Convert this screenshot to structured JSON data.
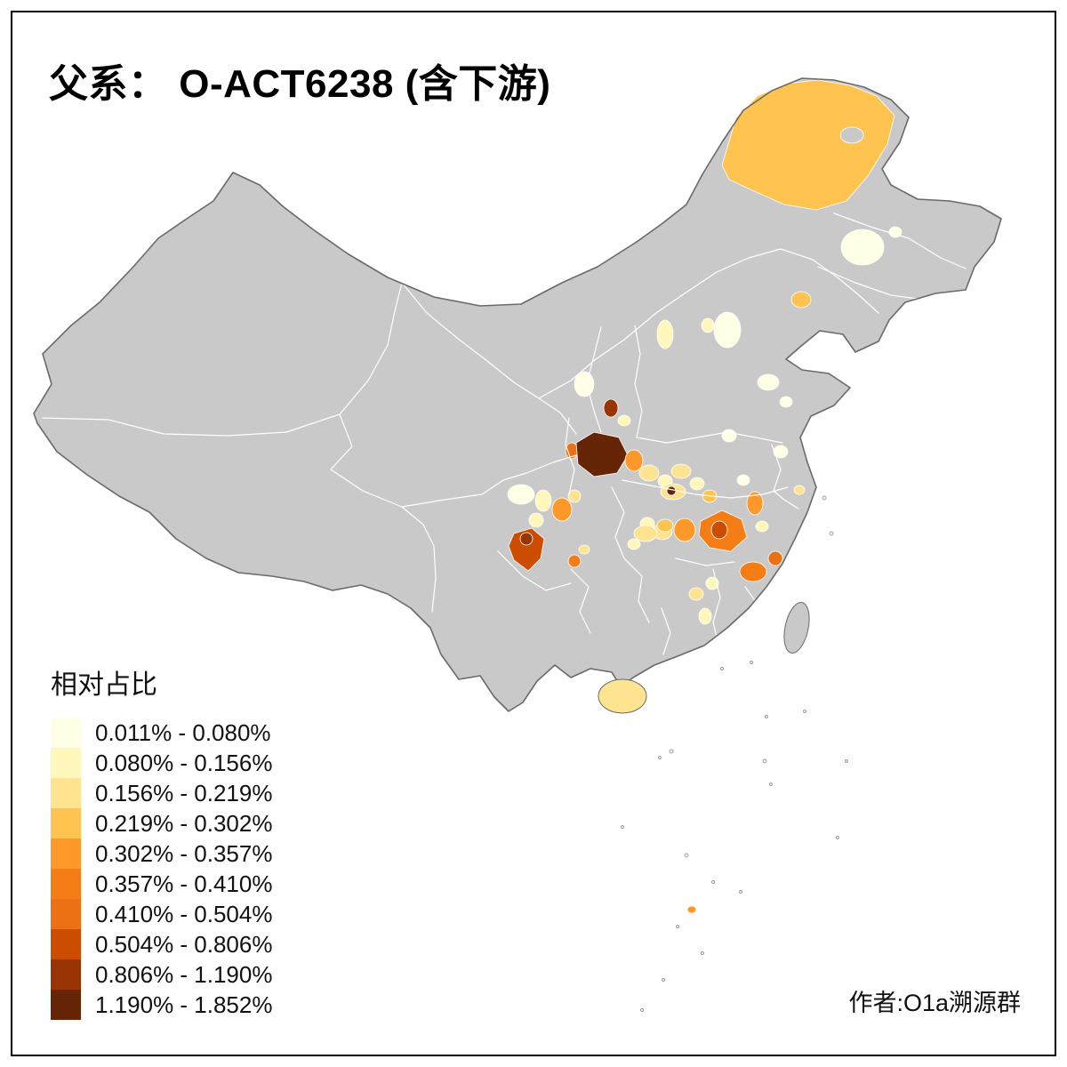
{
  "title": "父系： O-ACT6238 (含下游)",
  "legend": {
    "title": "相对占比",
    "classes": [
      {
        "label": "0.011% - 0.080%",
        "color": "#FFFFE5"
      },
      {
        "label": "0.080% - 0.156%",
        "color": "#FFF7BC"
      },
      {
        "label": "0.156% - 0.219%",
        "color": "#FEE391"
      },
      {
        "label": "0.219% - 0.302%",
        "color": "#FEC44F"
      },
      {
        "label": "0.302% - 0.357%",
        "color": "#FE9929"
      },
      {
        "label": "0.357% - 0.410%",
        "color": "#F57D15"
      },
      {
        "label": "0.410% - 0.504%",
        "color": "#EC7014"
      },
      {
        "label": "0.504% - 0.806%",
        "color": "#CC4C02"
      },
      {
        "label": "0.806% - 1.190%",
        "color": "#993404"
      },
      {
        "label": "1.190% - 1.852%",
        "color": "#662506"
      }
    ]
  },
  "attribution": "作者:O1a溯源群",
  "map": {
    "base_color": "#C9C9C9",
    "province_border_color": "#FFFFFF",
    "national_border_color": "#6A6A6A",
    "background": "#FFFFFF"
  }
}
